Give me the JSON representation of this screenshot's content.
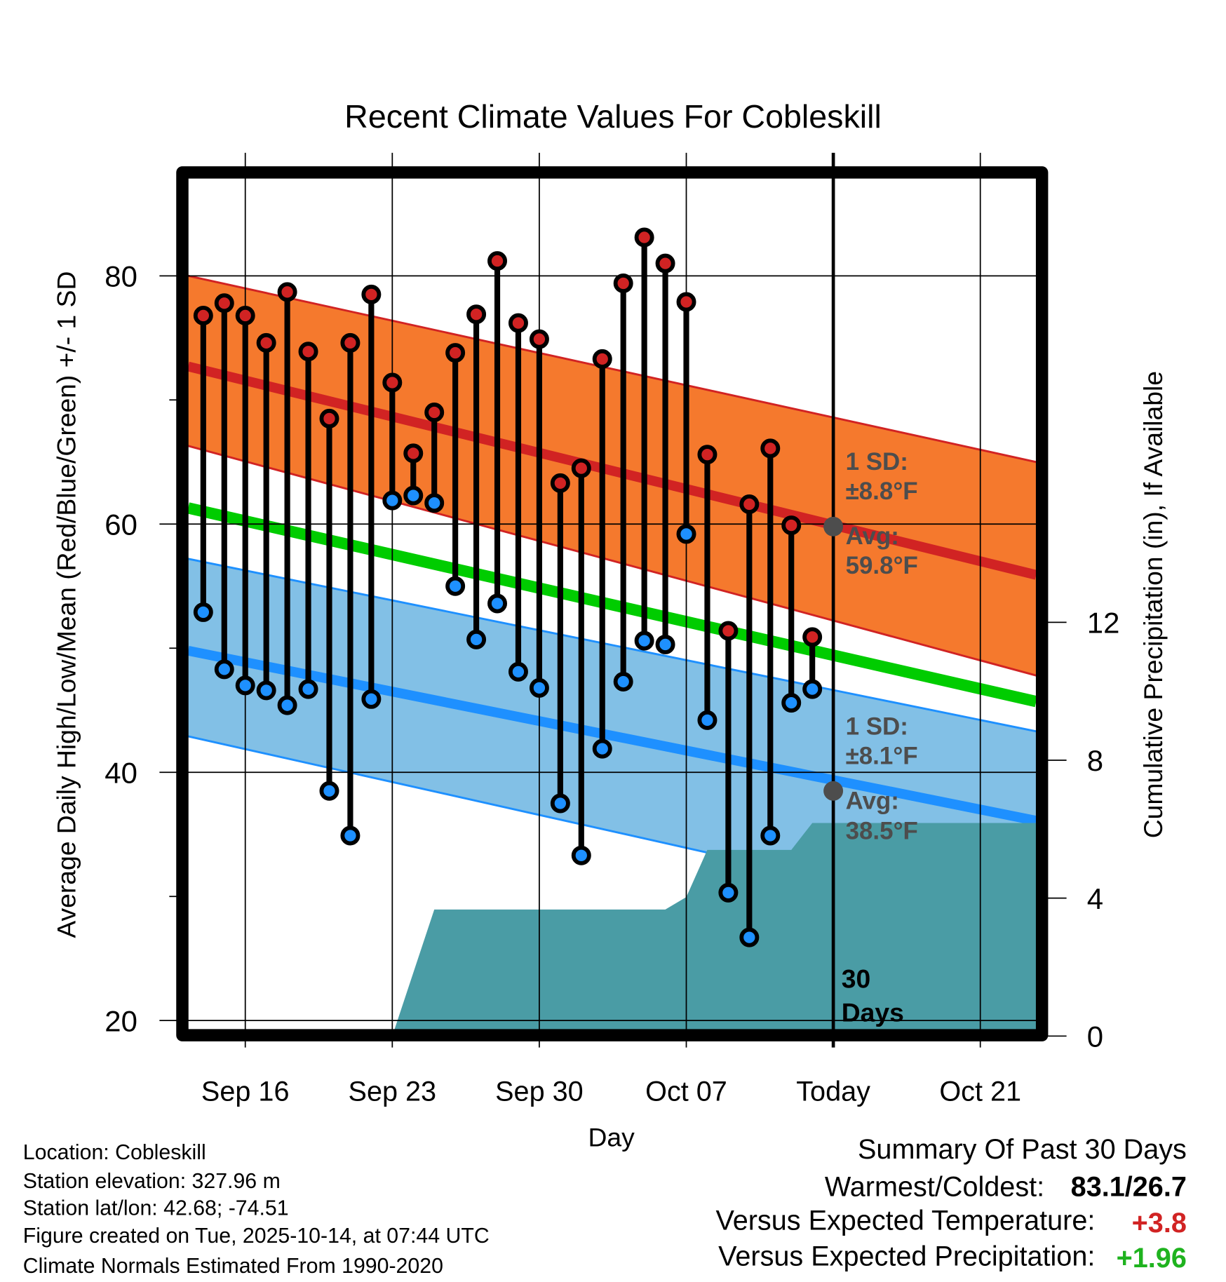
{
  "chart_data": {
    "type": "line",
    "title": "Recent Climate Values For Cobleskill",
    "xlabel": "Day",
    "ylabel": "Average Daily High/Low/Mean (Red/Blue/Green) +/- 1 SD",
    "y2label": "Cumulative Precipitation (in), If Available",
    "ylim": [
      20,
      88
    ],
    "y2lim": [
      0,
      16
    ],
    "x_unit": "days since Sep 16",
    "xlim": [
      -2.72,
      37.66
    ],
    "grid": true,
    "x_ticks": [
      {
        "day": 0,
        "label": "Sep 16"
      },
      {
        "day": 7,
        "label": "Sep 23"
      },
      {
        "day": 14,
        "label": "Sep 30"
      },
      {
        "day": 21,
        "label": "Oct 07"
      },
      {
        "day": 28,
        "label": "Today"
      },
      {
        "day": 35,
        "label": "Oct 21"
      }
    ],
    "y_ticks": [
      20,
      40,
      60,
      80
    ],
    "y_minor_ticks": [
      30,
      50,
      70
    ],
    "y2_ticks": [
      0,
      4,
      8,
      12
    ],
    "today_day": 28,
    "daily": {
      "start_day": -2,
      "high": [
        76.8,
        77.8,
        76.8,
        74.6,
        78.7,
        73.9,
        68.5,
        74.6,
        78.5,
        71.4,
        65.7,
        69.0,
        73.8,
        76.9,
        81.2,
        76.2,
        74.9,
        63.3,
        64.5,
        73.3,
        79.4,
        83.1,
        81.0,
        77.9,
        65.6,
        51.4,
        61.6,
        66.1,
        59.9,
        50.9
      ],
      "low": [
        52.9,
        48.3,
        47.0,
        46.6,
        45.4,
        46.7,
        38.5,
        34.9,
        45.9,
        61.9,
        62.3,
        61.7,
        55.0,
        50.7,
        53.6,
        48.1,
        46.8,
        37.5,
        33.3,
        41.9,
        47.3,
        50.6,
        50.3,
        59.2,
        44.2,
        30.3,
        26.7,
        34.9,
        45.6,
        46.7
      ]
    },
    "normals": {
      "high_mean": [
        72.7,
        55.9
      ],
      "high_upper": [
        80.0,
        65.0
      ],
      "high_lower": [
        66.3,
        47.8
      ],
      "mean": [
        61.3,
        45.7
      ],
      "low_mean": [
        49.8,
        36.1
      ],
      "low_upper": [
        57.2,
        43.3
      ],
      "low_lower": [
        42.9,
        27.6
      ]
    },
    "precip_cumulative": [
      [
        7,
        0
      ],
      [
        9,
        3.67
      ],
      [
        20,
        3.67
      ],
      [
        21,
        4.03
      ],
      [
        22,
        5.4
      ],
      [
        26,
        5.4
      ],
      [
        27,
        6.18
      ],
      [
        37.66,
        6.18
      ]
    ],
    "annotations": {
      "high_sd_label": "1 SD:",
      "high_sd_value": "±8.8°F",
      "high_avg_label": "Avg:",
      "high_avg_value": "59.8°F",
      "low_sd_label": "1 SD:",
      "low_sd_value": "±8.1°F",
      "low_avg_label": "Avg:",
      "low_avg_value": "38.5°F",
      "period_num": "30",
      "period_unit": "Days"
    },
    "colors": {
      "high": "#d12323",
      "high_band": "#f5792d",
      "mean": "#00cc00",
      "low": "#1e90ff",
      "low_band": "#82c0e6",
      "precip": "#4a9ca5"
    }
  },
  "footer": {
    "location": "Location: Cobleskill",
    "elevation": "Station elevation: 327.96 m",
    "latlon": "Station lat/lon: 42.68; -74.51",
    "created": "Figure created on Tue, 2025-10-14, at 07:44 UTC",
    "normals": "Climate Normals Estimated From 1990-2020"
  },
  "summary": {
    "title": "Summary Of Past 30 Days",
    "warm_cold_label": "Warmest/Coldest:",
    "warm_cold_value": "83.1/26.7",
    "temp_label": "Versus Expected Temperature:",
    "temp_value": "+3.8",
    "precip_label": "Versus Expected Precipitation:",
    "precip_value": "+1.96",
    "temp_color": "#d12323",
    "precip_color": "#1fb31f"
  }
}
